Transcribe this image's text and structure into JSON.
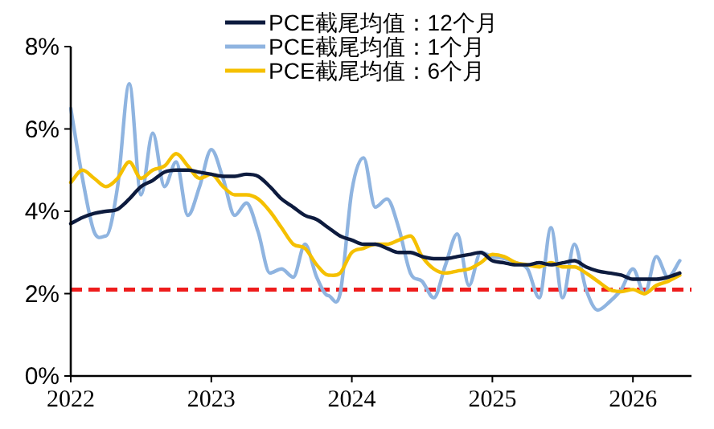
{
  "chart_data": {
    "type": "line",
    "x": [
      "2022-01",
      "2022-02",
      "2022-03",
      "2022-04",
      "2022-05",
      "2022-06",
      "2022-07",
      "2022-08",
      "2022-09",
      "2022-10",
      "2022-11",
      "2022-12",
      "2023-01",
      "2023-02",
      "2023-03",
      "2023-04",
      "2023-05",
      "2023-06",
      "2023-07",
      "2023-08",
      "2023-09",
      "2023-10",
      "2023-11",
      "2023-12",
      "2024-01",
      "2024-02",
      "2024-03",
      "2024-04",
      "2024-05",
      "2024-06",
      "2024-07",
      "2024-08",
      "2024-09",
      "2024-10",
      "2024-11",
      "2024-12",
      "2025-01",
      "2025-02",
      "2025-03",
      "2025-04",
      "2025-05",
      "2025-06",
      "2025-07",
      "2025-08",
      "2025-09",
      "2025-10",
      "2025-11",
      "2025-12",
      "2026-01",
      "2026-02",
      "2026-03",
      "2026-04",
      "2026-05"
    ],
    "series": [
      {
        "name": "PCE截尾均值：12个月",
        "color": "#0d1b3e",
        "values": [
          3.7,
          3.85,
          3.95,
          4.0,
          4.05,
          4.3,
          4.6,
          4.75,
          4.95,
          5.0,
          5.0,
          4.95,
          4.9,
          4.85,
          4.85,
          4.9,
          4.85,
          4.6,
          4.3,
          4.1,
          3.9,
          3.8,
          3.6,
          3.4,
          3.3,
          3.2,
          3.2,
          3.1,
          3.0,
          3.0,
          2.9,
          2.85,
          2.85,
          2.9,
          2.95,
          3.0,
          2.8,
          2.75,
          2.7,
          2.7,
          2.75,
          2.7,
          2.75,
          2.8,
          2.65,
          2.55,
          2.5,
          2.45,
          2.35,
          2.35,
          2.35,
          2.4,
          2.5
        ]
      },
      {
        "name": "PCE截尾均值：1个月",
        "color": "#8fb4e0",
        "values": [
          6.5,
          4.8,
          3.5,
          3.4,
          4.6,
          7.1,
          4.4,
          5.9,
          4.6,
          5.2,
          3.9,
          4.6,
          5.5,
          4.8,
          3.9,
          4.2,
          3.5,
          2.5,
          2.6,
          2.4,
          3.2,
          2.4,
          1.95,
          2.0,
          4.5,
          5.3,
          4.1,
          4.3,
          3.6,
          2.5,
          2.3,
          1.9,
          2.7,
          3.45,
          2.2,
          3.0,
          2.9,
          2.85,
          2.75,
          2.6,
          1.9,
          3.6,
          1.9,
          3.2,
          2.1,
          1.6,
          1.8,
          2.1,
          2.6,
          2.0,
          2.9,
          2.4,
          2.8
        ]
      },
      {
        "name": "PCE截尾均值：6个月",
        "color": "#f5c000",
        "values": [
          4.7,
          5.0,
          4.8,
          4.6,
          4.8,
          5.2,
          4.8,
          5.0,
          5.1,
          5.4,
          5.1,
          4.8,
          4.9,
          4.6,
          4.4,
          4.4,
          4.3,
          4.0,
          3.6,
          3.2,
          3.1,
          2.7,
          2.45,
          2.5,
          3.0,
          3.1,
          3.2,
          3.2,
          3.3,
          3.4,
          2.9,
          2.6,
          2.5,
          2.55,
          2.6,
          2.75,
          2.95,
          2.9,
          2.75,
          2.7,
          2.65,
          2.75,
          2.65,
          2.65,
          2.5,
          2.3,
          2.1,
          2.05,
          2.1,
          2.0,
          2.2,
          2.3,
          2.45
        ]
      }
    ],
    "xlim": [
      "2022-01",
      "2026-06"
    ],
    "xticks": [
      {
        "value": "2022",
        "label": "2022"
      },
      {
        "value": "2023",
        "label": "2023"
      },
      {
        "value": "2024",
        "label": "2024"
      },
      {
        "value": "2025",
        "label": "2025"
      },
      {
        "value": "2026",
        "label": "2026"
      }
    ],
    "ylim": [
      0,
      8
    ],
    "yticks": [
      {
        "value": 0,
        "label": "0%"
      },
      {
        "value": 2,
        "label": "2%"
      },
      {
        "value": 4,
        "label": "4%"
      },
      {
        "value": 6,
        "label": "6%"
      },
      {
        "value": 8,
        "label": "8%"
      }
    ],
    "ref_lines": [
      {
        "axis": "y",
        "value": 2.1,
        "color": "#ee1c1c",
        "line_style": "dashed"
      }
    ],
    "legend": "top",
    "line_style": "solid",
    "grid": false
  }
}
